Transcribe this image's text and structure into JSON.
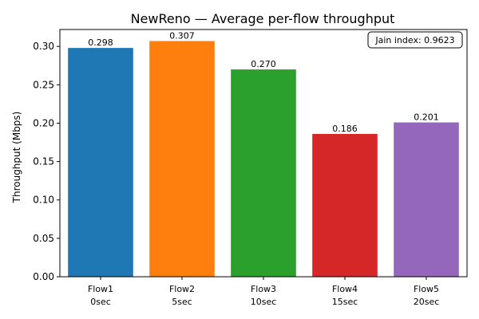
{
  "chart_data": {
    "type": "bar",
    "title": "NewReno — Average per-flow throughput",
    "xlabel": "",
    "ylabel": "Throughput (Mbps)",
    "ylim": [
      0,
      0.322
    ],
    "yticks": [
      "0.00",
      "0.05",
      "0.10",
      "0.15",
      "0.20",
      "0.25",
      "0.30"
    ],
    "categories": [
      {
        "line1": "Flow1",
        "line2": "0sec"
      },
      {
        "line1": "Flow2",
        "line2": "5sec"
      },
      {
        "line1": "Flow3",
        "line2": "10sec"
      },
      {
        "line1": "Flow4",
        "line2": "15sec"
      },
      {
        "line1": "Flow5",
        "line2": "20sec"
      }
    ],
    "values": [
      0.298,
      0.307,
      0.27,
      0.186,
      0.201
    ],
    "value_labels": [
      "0.298",
      "0.307",
      "0.270",
      "0.186",
      "0.201"
    ],
    "colors": [
      "#1f77b4",
      "#ff7f0e",
      "#2ca02c",
      "#d62728",
      "#9467bd"
    ],
    "grid": false,
    "annotation": {
      "text": "Jain index: 0.9623",
      "placement": "top-right"
    }
  }
}
